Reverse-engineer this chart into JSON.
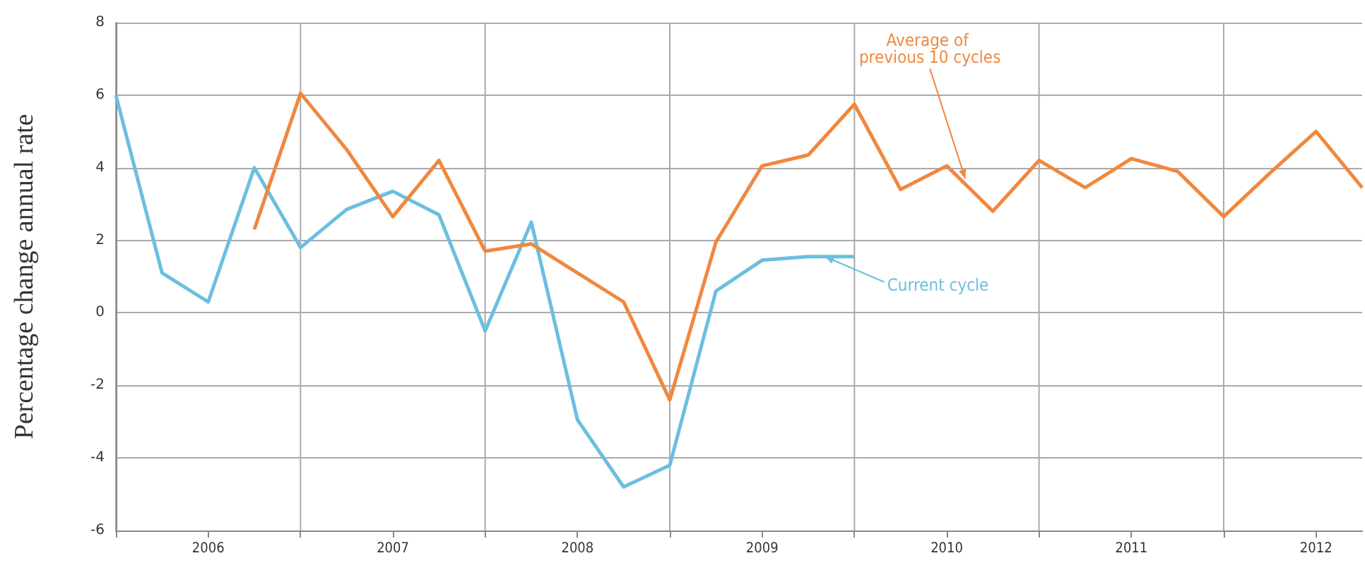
{
  "chart_data": {
    "type": "line",
    "ylabel": "Percentage change annual rate",
    "xlim": [
      2006,
      2012.75
    ],
    "ylim": [
      -6,
      8
    ],
    "yticks": [
      -6,
      -4,
      -2,
      0,
      2,
      4,
      6,
      8
    ],
    "xticks": [
      {
        "value": 2006,
        "label": null
      },
      {
        "value": 2006.5,
        "label": "2006"
      },
      {
        "value": 2007,
        "label": null
      },
      {
        "value": 2007.5,
        "label": "2007"
      },
      {
        "value": 2008,
        "label": null
      },
      {
        "value": 2008.5,
        "label": "2008"
      },
      {
        "value": 2009,
        "label": null
      },
      {
        "value": 2009.5,
        "label": "2009"
      },
      {
        "value": 2010,
        "label": null
      },
      {
        "value": 2010.5,
        "label": "2010"
      },
      {
        "value": 2011,
        "label": null
      },
      {
        "value": 2011.5,
        "label": "2011"
      },
      {
        "value": 2012,
        "label": null
      },
      {
        "value": 2012.5,
        "label": "2012"
      }
    ],
    "grid": true,
    "marker": "none",
    "line_style": "solid",
    "series": [
      {
        "color": "#6bbfe0",
        "x": [
          2006,
          2006.25,
          2006.5,
          2006.75,
          2007,
          2007.25,
          2007.5,
          2007.75,
          2008,
          2008.25,
          2008.5,
          2008.75,
          2009,
          2009.25,
          2009.5,
          2009.75,
          2010
        ],
        "values": [
          6.0,
          1.1,
          0.3,
          4.0,
          1.8,
          2.85,
          3.35,
          2.7,
          -0.5,
          2.5,
          -2.95,
          -4.8,
          -4.2,
          0.6,
          1.45,
          1.55,
          1.55
        ]
      },
      {
        "color": "#f0883e",
        "x": [
          2006.75,
          2007,
          2007.25,
          2007.5,
          2007.75,
          2008,
          2008.25,
          2008.5,
          2008.75,
          2009,
          2009.25,
          2009.5,
          2009.75,
          2010,
          2010.25,
          2010.5,
          2010.75,
          2011,
          2011.25,
          2011.5,
          2011.75,
          2012,
          2012.25,
          2012.5,
          2012.75
        ],
        "values": [
          2.3,
          6.05,
          4.5,
          2.65,
          4.2,
          1.7,
          1.9,
          1.1,
          0.3,
          -2.4,
          1.95,
          4.05,
          4.35,
          5.75,
          3.4,
          4.05,
          2.8,
          4.2,
          3.45,
          4.25,
          3.9,
          2.65,
          3.85,
          5.0,
          3.45
        ]
      }
    ],
    "annotations": [
      {
        "text": "Average of previous 10 cycles",
        "x": 2010.6,
        "y": 3.7
      },
      {
        "text": "Current cycle",
        "x": 2009.84,
        "y": 1.55
      }
    ]
  }
}
